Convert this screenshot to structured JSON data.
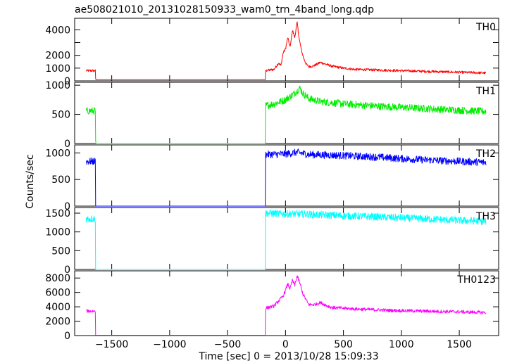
{
  "title": "ae508021010_20131028150933_wam0_trn_4band_long.qdp",
  "ylabel": "Counts/sec",
  "xlabel": "Time [sec] 0 = 2013/10/28 15:09:33",
  "chart_data": [
    {
      "type": "line",
      "panel": "TH0",
      "color": "#ff0000",
      "ylim": [
        0,
        4900
      ],
      "yticks": [
        0,
        1000,
        2000,
        3000,
        4000
      ],
      "yticklabels": [
        "0",
        "1000",
        "2000",
        "",
        "4000"
      ],
      "xlim": [
        -1820,
        1840
      ],
      "xticks": [
        -1500,
        -1000,
        -500,
        0,
        500,
        1000,
        1500
      ],
      "xticklabels": [],
      "series": [
        {
          "x": [
            -1720,
            -1640,
            -1639,
            -175,
            -174,
            -100,
            -60,
            -40,
            -20,
            0,
            20,
            40,
            60,
            80,
            100,
            120,
            140,
            160,
            180,
            200,
            250,
            300,
            350,
            400,
            500,
            600,
            800,
            1000,
            1200,
            1400,
            1600,
            1730
          ],
          "y": [
            800,
            800,
            100,
            100,
            800,
            900,
            1400,
            1200,
            2200,
            2500,
            3400,
            2600,
            4000,
            3400,
            4600,
            3200,
            2300,
            1700,
            1300,
            1100,
            1200,
            1450,
            1300,
            1150,
            1000,
            900,
            850,
            800,
            750,
            700,
            650,
            620
          ]
        }
      ]
    },
    {
      "type": "line",
      "panel": "TH1",
      "color": "#00ee00",
      "ylim": [
        0,
        1050
      ],
      "yticks": [
        0,
        500,
        1000
      ],
      "yticklabels": [
        "0",
        "500",
        "1000"
      ],
      "xlim": [
        -1820,
        1840
      ],
      "xticks": [
        -1500,
        -1000,
        -500,
        0,
        500,
        1000,
        1500
      ],
      "xticklabels": [],
      "series": [
        {
          "x": [
            -1720,
            -1640,
            -1639,
            -175,
            -174,
            -100,
            0,
            50,
            100,
            120,
            150,
            200,
            300,
            500,
            800,
            1100,
            1400,
            1730
          ],
          "y": [
            560,
            560,
            0,
            0,
            650,
            680,
            750,
            820,
            900,
            960,
            860,
            770,
            720,
            680,
            640,
            610,
            580,
            550
          ]
        }
      ]
    },
    {
      "type": "line",
      "panel": "TH2",
      "color": "#0000ff",
      "ylim": [
        0,
        1150
      ],
      "yticks": [
        0,
        500,
        1000
      ],
      "yticklabels": [
        "0",
        "500",
        "1000"
      ],
      "xlim": [
        -1820,
        1840
      ],
      "xticks": [
        -1500,
        -1000,
        -500,
        0,
        500,
        1000,
        1500
      ],
      "xticklabels": [],
      "series": [
        {
          "x": [
            -1720,
            -1640,
            -1639,
            -175,
            -174,
            0,
            100,
            200,
            500,
            800,
            1100,
            1400,
            1730
          ],
          "y": [
            840,
            840,
            0,
            0,
            970,
            980,
            1010,
            970,
            950,
            920,
            880,
            850,
            820
          ]
        }
      ]
    },
    {
      "type": "line",
      "panel": "TH3",
      "color": "#00ffff",
      "ylim": [
        0,
        1650
      ],
      "yticks": [
        0,
        500,
        1000,
        1500
      ],
      "yticklabels": [
        "0",
        "500",
        "1000",
        "1500"
      ],
      "xlim": [
        -1820,
        1840
      ],
      "xticks": [
        -1500,
        -1000,
        -500,
        0,
        500,
        1000,
        1500
      ],
      "xticklabels": [],
      "series": [
        {
          "x": [
            -1720,
            -1640,
            -1639,
            -175,
            -174,
            0,
            200,
            500,
            800,
            1100,
            1400,
            1730
          ],
          "y": [
            1350,
            1350,
            0,
            0,
            1500,
            1480,
            1470,
            1430,
            1400,
            1360,
            1320,
            1280
          ]
        }
      ]
    },
    {
      "type": "line",
      "panel": "TH0123",
      "color": "#ff00ff",
      "ylim": [
        0,
        9000
      ],
      "yticks": [
        0,
        2000,
        4000,
        6000,
        8000
      ],
      "yticklabels": [
        "0",
        "2000",
        "4000",
        "6000",
        "8000"
      ],
      "xlim": [
        -1820,
        1840
      ],
      "xticks": [
        -1500,
        -1000,
        -500,
        0,
        500,
        1000,
        1500
      ],
      "xticklabels": [
        "−1500",
        "−1000",
        "−500",
        "0",
        "500",
        "1000",
        "1500"
      ],
      "series": [
        {
          "x": [
            -1720,
            -1640,
            -1639,
            -175,
            -174,
            -100,
            -60,
            -20,
            0,
            20,
            40,
            60,
            80,
            100,
            120,
            150,
            200,
            250,
            300,
            350,
            400,
            600,
            900,
            1200,
            1500,
            1730
          ],
          "y": [
            3400,
            3400,
            50,
            50,
            3800,
            4100,
            4800,
            5500,
            6300,
            7200,
            6500,
            7700,
            7000,
            8300,
            7500,
            5800,
            4300,
            4300,
            4600,
            4200,
            3900,
            3700,
            3500,
            3400,
            3300,
            3200
          ]
        }
      ]
    }
  ]
}
